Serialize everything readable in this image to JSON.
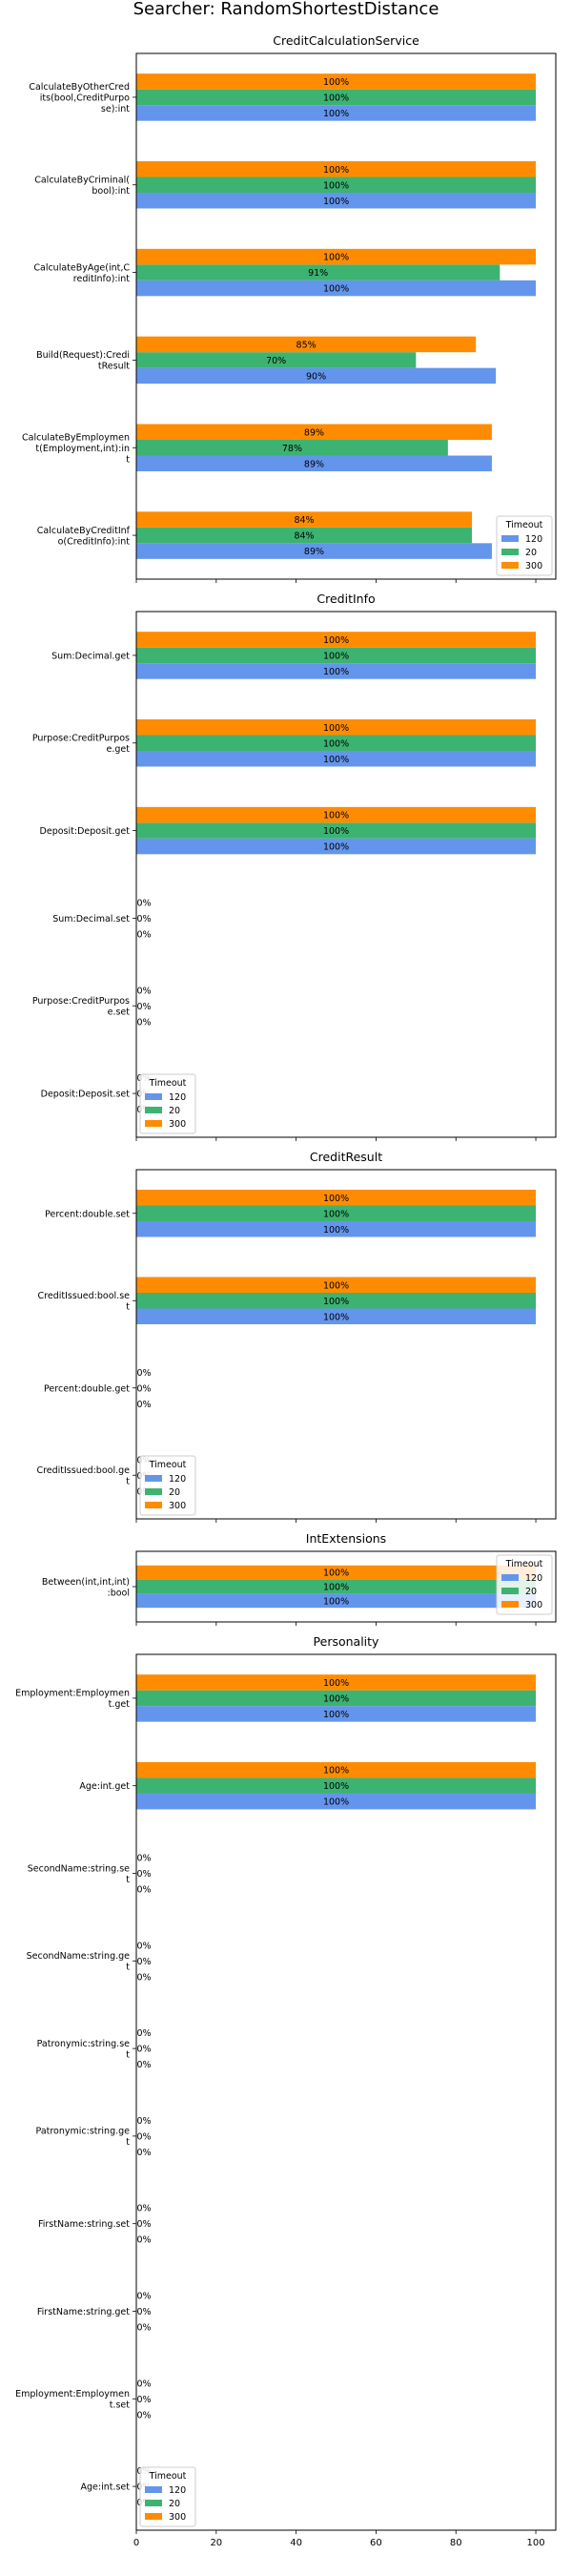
{
  "figure_title": "Searcher: RandomShortestDistance",
  "legend_title": "Timeout",
  "series_colors": {
    "120": "#6495ED",
    "20": "#3CB371",
    "300": "#FF8C00"
  },
  "chart_data": [
    {
      "type": "bar",
      "orientation": "horizontal",
      "title": "CreditCalculationService",
      "categories": [
        "CalculateByOtherCred its(bool,CreditPurpo se):int",
        "CalculateByCriminal( bool):int",
        "CalculateByAge(int,C reditInfo):int",
        "Build(Request):Credi tResult",
        "CalculateByEmploymen t(Employment,int):in t",
        "CalculateByCreditInf o(CreditInfo):int"
      ],
      "series": [
        {
          "name": "120",
          "values": [
            100,
            100,
            100,
            90,
            89,
            89
          ]
        },
        {
          "name": "20",
          "values": [
            100,
            100,
            91,
            70,
            78,
            84
          ]
        },
        {
          "name": "300",
          "values": [
            100,
            100,
            100,
            85,
            89,
            84
          ]
        }
      ],
      "labels": [
        [
          "100%",
          "100%",
          "100%",
          "90%",
          "89%",
          "89%"
        ],
        [
          "100%",
          "100%",
          "91%",
          "70%",
          "78%",
          "84%"
        ],
        [
          "100%",
          "100%",
          "100%",
          "85%",
          "89%",
          "84%"
        ]
      ],
      "legend": "lower-right",
      "xlim": [
        0,
        105
      ]
    },
    {
      "type": "bar",
      "orientation": "horizontal",
      "title": "CreditInfo",
      "categories": [
        "Sum:Decimal.get",
        "Purpose:CreditPurpos e.get",
        "Deposit:Deposit.get",
        "Sum:Decimal.set",
        "Purpose:CreditPurpos e.set",
        "Deposit:Deposit.set"
      ],
      "series": [
        {
          "name": "120",
          "values": [
            100,
            100,
            100,
            0,
            0,
            0
          ]
        },
        {
          "name": "20",
          "values": [
            100,
            100,
            100,
            0,
            0,
            0
          ]
        },
        {
          "name": "300",
          "values": [
            100,
            100,
            100,
            0,
            0,
            0
          ]
        }
      ],
      "labels": [
        [
          "100%",
          "100%",
          "100%",
          "0%",
          "0%",
          "0%"
        ],
        [
          "100%",
          "100%",
          "100%",
          "0%",
          "0%",
          "0%"
        ],
        [
          "100%",
          "100%",
          "100%",
          "0%",
          "0%",
          "0%"
        ]
      ],
      "legend": "lower-left",
      "xlim": [
        0,
        105
      ]
    },
    {
      "type": "bar",
      "orientation": "horizontal",
      "title": "CreditResult",
      "categories": [
        "Percent:double.set",
        "CreditIssued:bool.se t",
        "Percent:double.get",
        "CreditIssued:bool.ge t"
      ],
      "series": [
        {
          "name": "120",
          "values": [
            100,
            100,
            0,
            0
          ]
        },
        {
          "name": "20",
          "values": [
            100,
            100,
            0,
            0
          ]
        },
        {
          "name": "300",
          "values": [
            100,
            100,
            0,
            0
          ]
        }
      ],
      "labels": [
        [
          "100%",
          "100%",
          "0%",
          "0%"
        ],
        [
          "100%",
          "100%",
          "0%",
          "0%"
        ],
        [
          "100%",
          "100%",
          "0%",
          "0%"
        ]
      ],
      "legend": "lower-left",
      "xlim": [
        0,
        105
      ]
    },
    {
      "type": "bar",
      "orientation": "horizontal",
      "title": "IntExtensions",
      "categories": [
        "Between(int,int,int) :bool"
      ],
      "series": [
        {
          "name": "120",
          "values": [
            100
          ]
        },
        {
          "name": "20",
          "values": [
            100
          ]
        },
        {
          "name": "300",
          "values": [
            100
          ]
        }
      ],
      "labels": [
        [
          "100%"
        ],
        [
          "100%"
        ],
        [
          "100%"
        ]
      ],
      "legend": "upper-right",
      "xlim": [
        0,
        105
      ]
    },
    {
      "type": "bar",
      "orientation": "horizontal",
      "title": "Personality",
      "categories": [
        "Employment:Employmen t.get",
        "Age:int.get",
        "SecondName:string.se t",
        "SecondName:string.ge t",
        "Patronymic:string.se t",
        "Patronymic:string.ge t",
        "FirstName:string.set",
        "FirstName:string.get",
        "Employment:Employmen t.set",
        "Age:int.set"
      ],
      "series": [
        {
          "name": "120",
          "values": [
            100,
            100,
            0,
            0,
            0,
            0,
            0,
            0,
            0,
            0
          ]
        },
        {
          "name": "20",
          "values": [
            100,
            100,
            0,
            0,
            0,
            0,
            0,
            0,
            0,
            0
          ]
        },
        {
          "name": "300",
          "values": [
            100,
            100,
            0,
            0,
            0,
            0,
            0,
            0,
            0,
            0
          ]
        }
      ],
      "labels": [
        [
          "100%",
          "100%",
          "0%",
          "0%",
          "0%",
          "0%",
          "0%",
          "0%",
          "0%",
          "0%"
        ],
        [
          "100%",
          "100%",
          "0%",
          "0%",
          "0%",
          "0%",
          "0%",
          "0%",
          "0%",
          "0%"
        ],
        [
          "100%",
          "100%",
          "0%",
          "0%",
          "0%",
          "0%",
          "0%",
          "0%",
          "0%",
          "0%"
        ]
      ],
      "legend": "lower-left",
      "xlim": [
        0,
        105
      ],
      "xticks": [
        "0",
        "20",
        "40",
        "60",
        "80",
        "100"
      ]
    }
  ]
}
